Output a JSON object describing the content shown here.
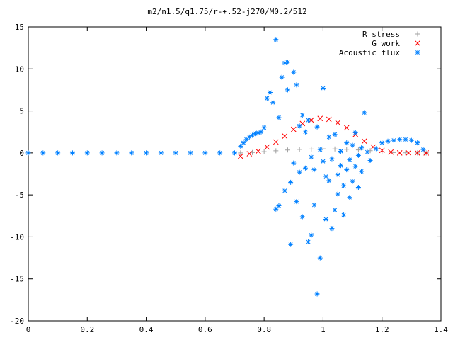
{
  "chart_data": {
    "type": "scatter",
    "title": "m2/n1.5/q1.75/r-+.52-j270/M0.2/512",
    "xlabel": "",
    "ylabel": "",
    "xlim": [
      0,
      1.4
    ],
    "ylim": [
      -20,
      15
    ],
    "xticks": [
      "0",
      "0.2",
      "0.4",
      "0.6",
      "0.8",
      "1",
      "1.2",
      "1.4"
    ],
    "yticks": [
      "-20",
      "-15",
      "-10",
      "-5",
      "0",
      "5",
      "10",
      "15"
    ],
    "grid": false,
    "legend_position": "top-right",
    "series": [
      {
        "name": "R stress",
        "marker": "+",
        "color": "#a0a0a0",
        "x": [
          0.72,
          0.76,
          0.8,
          0.84,
          0.88,
          0.92,
          0.96,
          1.0,
          1.04,
          1.08,
          1.12,
          1.16,
          1.2,
          1.24,
          1.28,
          1.32,
          1.35
        ],
        "y": [
          0.0,
          0.05,
          0.15,
          0.25,
          0.35,
          0.42,
          0.46,
          0.48,
          0.47,
          0.43,
          0.36,
          0.26,
          0.12,
          0.04,
          0.01,
          0.0,
          0.0
        ]
      },
      {
        "name": "G work",
        "marker": "x",
        "color": "#ff0000",
        "x": [
          0.72,
          0.75,
          0.78,
          0.81,
          0.84,
          0.87,
          0.9,
          0.93,
          0.96,
          0.99,
          1.02,
          1.05,
          1.08,
          1.11,
          1.14,
          1.17,
          1.2,
          1.23,
          1.26,
          1.29,
          1.32,
          1.35
        ],
        "y": [
          -0.4,
          -0.1,
          0.2,
          0.7,
          1.3,
          2.0,
          2.8,
          3.5,
          3.9,
          4.1,
          4.0,
          3.6,
          3.0,
          2.2,
          1.4,
          0.7,
          0.3,
          0.1,
          0.0,
          0.0,
          0.0,
          0.0
        ]
      },
      {
        "name": "Acoustic flux",
        "marker": "*",
        "color": "#0080ff",
        "x": [
          0.0,
          0.05,
          0.1,
          0.15,
          0.2,
          0.25,
          0.3,
          0.35,
          0.4,
          0.45,
          0.5,
          0.55,
          0.6,
          0.65,
          0.7,
          0.72,
          0.73,
          0.74,
          0.75,
          0.76,
          0.77,
          0.78,
          0.79,
          0.8,
          0.81,
          0.82,
          0.83,
          0.84,
          0.84,
          0.85,
          0.85,
          0.86,
          0.87,
          0.87,
          0.88,
          0.88,
          0.89,
          0.89,
          0.9,
          0.9,
          0.91,
          0.91,
          0.92,
          0.92,
          0.93,
          0.93,
          0.94,
          0.94,
          0.95,
          0.95,
          0.96,
          0.96,
          0.97,
          0.97,
          0.98,
          0.98,
          0.99,
          0.99,
          1.0,
          1.0,
          1.01,
          1.01,
          1.02,
          1.02,
          1.03,
          1.03,
          1.04,
          1.04,
          1.05,
          1.05,
          1.06,
          1.06,
          1.07,
          1.07,
          1.08,
          1.08,
          1.09,
          1.09,
          1.1,
          1.1,
          1.11,
          1.11,
          1.12,
          1.12,
          1.13,
          1.13,
          1.14,
          1.15,
          1.16,
          1.18,
          1.2,
          1.22,
          1.24,
          1.26,
          1.28,
          1.3,
          1.32,
          1.34
        ],
        "y": [
          0.0,
          0.0,
          0.0,
          0.0,
          0.0,
          0.0,
          0.0,
          0.0,
          0.0,
          0.0,
          0.0,
          0.0,
          0.0,
          0.0,
          0.0,
          0.8,
          1.2,
          1.6,
          1.9,
          2.1,
          2.3,
          2.4,
          2.5,
          3.0,
          6.5,
          7.2,
          6.0,
          -6.7,
          13.5,
          4.2,
          -6.3,
          9.0,
          10.7,
          -4.5,
          7.5,
          10.8,
          -10.9,
          -3.5,
          9.6,
          -1.2,
          8.1,
          -5.8,
          3.2,
          -2.3,
          4.5,
          -7.6,
          -1.8,
          2.5,
          -10.6,
          3.9,
          -9.8,
          -0.5,
          -2.0,
          -6.2,
          -16.8,
          3.1,
          -12.5,
          0.4,
          -1.0,
          7.7,
          -7.9,
          -2.8,
          -3.3,
          1.9,
          -9.0,
          -0.7,
          -6.8,
          2.2,
          -2.6,
          -4.9,
          -1.5,
          0.2,
          -7.4,
          -3.9,
          -2.0,
          1.2,
          -5.3,
          -0.8,
          -3.4,
          0.9,
          -1.6,
          2.4,
          -4.1,
          -0.3,
          0.6,
          -2.2,
          4.8,
          0.1,
          -0.9,
          0.5,
          1.2,
          1.4,
          1.5,
          1.6,
          1.6,
          1.5,
          1.2,
          0.4
        ]
      }
    ]
  }
}
